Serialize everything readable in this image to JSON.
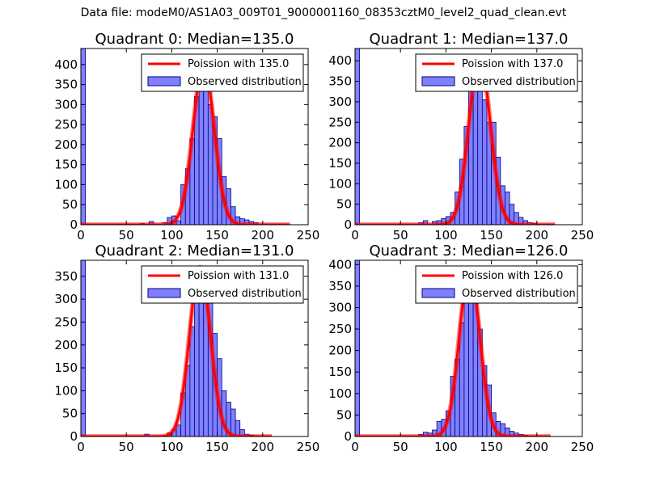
{
  "suptitle": "Data file: modeM0/AS1A03_009T01_9000001160_08353cztM0_level2_quad_clean.evt",
  "colors": {
    "bar_fill": "#8080ff",
    "bar_edge": "#000080",
    "poisson_line": "#ff0000",
    "axis": "#000000"
  },
  "chart_data": [
    {
      "type": "bar",
      "title": "Quadrant 0: Median=135.0",
      "xlim": [
        0,
        250
      ],
      "ylim": [
        0,
        440
      ],
      "xticks": [
        0,
        50,
        100,
        150,
        200,
        250
      ],
      "yticks": [
        0,
        50,
        100,
        150,
        200,
        250,
        300,
        350,
        400
      ],
      "legend": {
        "placement": "top-right",
        "line_label": "Poission with 135.0",
        "bar_label": "Observed distribution"
      },
      "bin_width": 5,
      "bins": [
        [
          0,
          440
        ],
        [
          65,
          3
        ],
        [
          75,
          8
        ],
        [
          80,
          2
        ],
        [
          90,
          5
        ],
        [
          95,
          18
        ],
        [
          100,
          22
        ],
        [
          105,
          10
        ],
        [
          110,
          100
        ],
        [
          115,
          140
        ],
        [
          120,
          215
        ],
        [
          125,
          320
        ],
        [
          130,
          370
        ],
        [
          135,
          350
        ],
        [
          140,
          300
        ],
        [
          145,
          270
        ],
        [
          150,
          215
        ],
        [
          155,
          120
        ],
        [
          160,
          90
        ],
        [
          165,
          45
        ],
        [
          170,
          20
        ],
        [
          175,
          15
        ],
        [
          180,
          12
        ],
        [
          185,
          8
        ],
        [
          190,
          5
        ],
        [
          195,
          2
        ],
        [
          200,
          2
        ],
        [
          205,
          1
        ]
      ],
      "poisson_mean": 135,
      "poisson_peak": 400,
      "line_range": [
        0,
        230
      ]
    },
    {
      "type": "bar",
      "title": "Quadrant 1: Median=137.0",
      "xlim": [
        0,
        250
      ],
      "ylim": [
        0,
        430
      ],
      "xticks": [
        0,
        50,
        100,
        150,
        200,
        250
      ],
      "yticks": [
        0,
        50,
        100,
        150,
        200,
        250,
        300,
        350,
        400
      ],
      "legend": {
        "placement": "top-right",
        "line_label": "Poission with 137.0",
        "bar_label": "Observed distribution"
      },
      "bin_width": 5,
      "bins": [
        [
          0,
          430
        ],
        [
          70,
          5
        ],
        [
          75,
          10
        ],
        [
          85,
          8
        ],
        [
          90,
          10
        ],
        [
          95,
          15
        ],
        [
          100,
          20
        ],
        [
          105,
          30
        ],
        [
          110,
          80
        ],
        [
          115,
          160
        ],
        [
          120,
          240
        ],
        [
          125,
          330
        ],
        [
          130,
          405
        ],
        [
          135,
          370
        ],
        [
          140,
          305
        ],
        [
          145,
          250
        ],
        [
          150,
          250
        ],
        [
          155,
          165
        ],
        [
          160,
          95
        ],
        [
          165,
          80
        ],
        [
          170,
          50
        ],
        [
          175,
          30
        ],
        [
          180,
          18
        ],
        [
          185,
          10
        ],
        [
          190,
          5
        ],
        [
          195,
          3
        ]
      ],
      "poisson_mean": 137,
      "poisson_peak": 410,
      "line_range": [
        0,
        220
      ]
    },
    {
      "type": "bar",
      "title": "Quadrant 2: Median=131.0",
      "xlim": [
        0,
        250
      ],
      "ylim": [
        0,
        385
      ],
      "xticks": [
        0,
        50,
        100,
        150,
        200,
        250
      ],
      "yticks": [
        0,
        50,
        100,
        150,
        200,
        250,
        300,
        350
      ],
      "legend": {
        "placement": "top-right",
        "line_label": "Poission with 131.0",
        "bar_label": "Observed distribution"
      },
      "bin_width": 5,
      "bins": [
        [
          0,
          385
        ],
        [
          70,
          5
        ],
        [
          90,
          2
        ],
        [
          95,
          8
        ],
        [
          100,
          15
        ],
        [
          105,
          25
        ],
        [
          110,
          95
        ],
        [
          115,
          155
        ],
        [
          120,
          240
        ],
        [
          125,
          325
        ],
        [
          130,
          355
        ],
        [
          135,
          325
        ],
        [
          140,
          295
        ],
        [
          145,
          225
        ],
        [
          150,
          170
        ],
        [
          155,
          100
        ],
        [
          160,
          75
        ],
        [
          165,
          60
        ],
        [
          170,
          35
        ],
        [
          175,
          15
        ],
        [
          180,
          5
        ],
        [
          185,
          3
        ],
        [
          190,
          2
        ],
        [
          195,
          1
        ]
      ],
      "poisson_mean": 131,
      "poisson_peak": 370,
      "line_range": [
        0,
        210
      ]
    },
    {
      "type": "bar",
      "title": "Quadrant 3: Median=126.0",
      "xlim": [
        0,
        250
      ],
      "ylim": [
        0,
        410
      ],
      "xticks": [
        0,
        50,
        100,
        150,
        200,
        250
      ],
      "yticks": [
        0,
        50,
        100,
        150,
        200,
        250,
        300,
        350,
        400
      ],
      "legend": {
        "placement": "top-right",
        "line_label": "Poission with 126.0",
        "bar_label": "Observed distribution"
      },
      "bin_width": 5,
      "bins": [
        [
          0,
          410
        ],
        [
          60,
          2
        ],
        [
          70,
          5
        ],
        [
          75,
          10
        ],
        [
          80,
          8
        ],
        [
          85,
          15
        ],
        [
          90,
          35
        ],
        [
          95,
          40
        ],
        [
          100,
          60
        ],
        [
          105,
          140
        ],
        [
          110,
          180
        ],
        [
          115,
          265
        ],
        [
          120,
          385
        ],
        [
          125,
          385
        ],
        [
          130,
          340
        ],
        [
          135,
          250
        ],
        [
          140,
          165
        ],
        [
          145,
          120
        ],
        [
          150,
          55
        ],
        [
          155,
          35
        ],
        [
          160,
          30
        ],
        [
          165,
          20
        ],
        [
          170,
          12
        ],
        [
          175,
          8
        ],
        [
          180,
          5
        ],
        [
          185,
          3
        ],
        [
          190,
          2
        ]
      ],
      "poisson_mean": 126,
      "poisson_peak": 390,
      "line_range": [
        0,
        215
      ]
    }
  ]
}
